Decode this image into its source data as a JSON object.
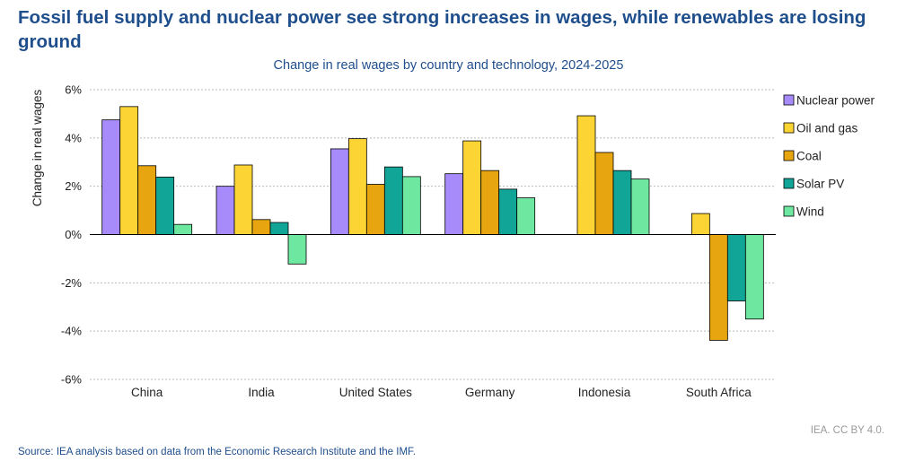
{
  "header": {
    "title": "Fossil fuel supply and nuclear power see strong increases in wages, while renewables are losing ground",
    "subtitle": "Change in real wages by country and technology, 2024-2025"
  },
  "footer": {
    "credit": "IEA. CC BY 4.0.",
    "source": "Source: IEA analysis based on data from the Economic Research Institute and the IMF."
  },
  "chart_data": {
    "type": "bar",
    "title": "Change in real wages by country and technology, 2024-2025",
    "xlabel": "",
    "ylabel": "Change in real wages",
    "ylim": [
      -6,
      6
    ],
    "yticks": [
      6,
      4,
      2,
      0,
      -2,
      -4,
      -6
    ],
    "ytick_labels": [
      "6%",
      "4%",
      "2%",
      "0%",
      "-2%",
      "-4%",
      "-6%"
    ],
    "grid": true,
    "legend_position": "right",
    "categories": [
      "China",
      "India",
      "United States",
      "Germany",
      "Indonesia",
      "South Africa"
    ],
    "series": [
      {
        "name": "Nuclear power",
        "color": "#a78bfa",
        "values": [
          4.75,
          2.0,
          3.55,
          2.52,
          null,
          null
        ]
      },
      {
        "name": "Oil and gas",
        "color": "#fcd535",
        "values": [
          5.3,
          2.88,
          3.97,
          3.88,
          4.92,
          0.87
        ]
      },
      {
        "name": "Coal",
        "color": "#e7a610",
        "values": [
          2.85,
          0.62,
          2.08,
          2.65,
          3.4,
          -4.38
        ]
      },
      {
        "name": "Solar PV",
        "color": "#10a596",
        "values": [
          2.38,
          0.5,
          2.8,
          1.88,
          2.65,
          -2.75
        ]
      },
      {
        "name": "Wind",
        "color": "#6ee7a0",
        "values": [
          0.42,
          -1.22,
          2.4,
          1.52,
          2.3,
          -3.5
        ]
      }
    ]
  }
}
